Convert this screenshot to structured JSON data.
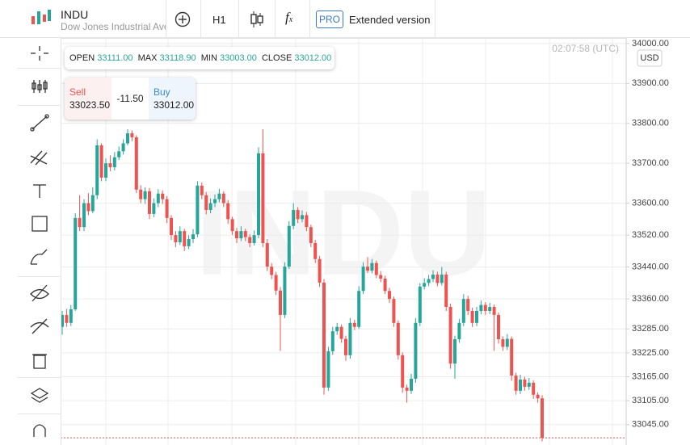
{
  "header": {
    "symbol": "INDU",
    "name": "Dow Jones Industrial Ave",
    "timeframe": "H1",
    "badge": "PRO",
    "extended": "Extended version"
  },
  "ohlc": {
    "open_label": "OPEN",
    "open": "33111.00",
    "max_label": "MAX",
    "max": "33118.90",
    "min_label": "MIN",
    "min": "33003.00",
    "close_label": "CLOSE",
    "close": "33012.00"
  },
  "trade": {
    "sell_label": "Sell",
    "sell": "33023.50",
    "spread": "-11.50",
    "buy_label": "Buy",
    "buy": "33012.00"
  },
  "clock": "02:07:58 (UTC)",
  "currency": "USD",
  "chart": {
    "type": "candlestick",
    "ylim": [
      32994,
      34014
    ],
    "yticks": [
      {
        "value": 34000,
        "label": "34000.00"
      },
      {
        "value": 33900,
        "label": "33900.00"
      },
      {
        "value": 33800,
        "label": "33800.00"
      },
      {
        "value": 33700,
        "label": "33700.00"
      },
      {
        "value": 33600,
        "label": "33600.00"
      },
      {
        "value": 33520,
        "label": "33520.00"
      },
      {
        "value": 33440,
        "label": "33440.00"
      },
      {
        "value": 33360,
        "label": "33360.00"
      },
      {
        "value": 33285,
        "label": "33285.00"
      },
      {
        "value": 33225,
        "label": "33225.00"
      },
      {
        "value": 33165,
        "label": "33165.00"
      },
      {
        "value": 33105,
        "label": "33105.00"
      },
      {
        "value": 33045,
        "label": "33045.00"
      }
    ],
    "grid": true,
    "up_color": "#26a69a",
    "down_color": "#ef5350",
    "candles": [
      [
        33290,
        33330,
        33270,
        33320
      ],
      [
        33320,
        33335,
        33290,
        33300
      ],
      [
        33300,
        33345,
        33292,
        33334
      ],
      [
        33334,
        33575,
        33330,
        33563
      ],
      [
        33563,
        33620,
        33530,
        33540
      ],
      [
        33540,
        33610,
        33530,
        33600
      ],
      [
        33600,
        33625,
        33570,
        33580
      ],
      [
        33580,
        33640,
        33575,
        33620
      ],
      [
        33620,
        33760,
        33610,
        33745
      ],
      [
        33745,
        33750,
        33655,
        33664
      ],
      [
        33664,
        33712,
        33655,
        33700
      ],
      [
        33700,
        33720,
        33680,
        33690
      ],
      [
        33690,
        33728,
        33682,
        33715
      ],
      [
        33715,
        33742,
        33708,
        33730
      ],
      [
        33730,
        33760,
        33722,
        33750
      ],
      [
        33750,
        33785,
        33745,
        33775
      ],
      [
        33775,
        33782,
        33755,
        33765
      ],
      [
        33765,
        33770,
        33625,
        33634
      ],
      [
        33634,
        33645,
        33600,
        33610
      ],
      [
        33610,
        33640,
        33598,
        33630
      ],
      [
        33630,
        33638,
        33560,
        33573
      ],
      [
        33573,
        33612,
        33565,
        33600
      ],
      [
        33600,
        33635,
        33590,
        33624
      ],
      [
        33624,
        33632,
        33598,
        33610
      ],
      [
        33610,
        33618,
        33550,
        33563
      ],
      [
        33563,
        33570,
        33508,
        33520
      ],
      [
        33520,
        33530,
        33490,
        33502
      ],
      [
        33502,
        33542,
        33495,
        33530
      ],
      [
        33530,
        33536,
        33480,
        33492
      ],
      [
        33492,
        33520,
        33485,
        33510
      ],
      [
        33510,
        33535,
        33500,
        33522
      ],
      [
        33522,
        33655,
        33515,
        33644
      ],
      [
        33644,
        33652,
        33610,
        33620
      ],
      [
        33620,
        33628,
        33572,
        33583
      ],
      [
        33583,
        33612,
        33575,
        33600
      ],
      [
        33600,
        33622,
        33590,
        33610
      ],
      [
        33610,
        33636,
        33602,
        33624
      ],
      [
        33624,
        33630,
        33590,
        33600
      ],
      [
        33600,
        33608,
        33548,
        33560
      ],
      [
        33560,
        33566,
        33520,
        33530
      ],
      [
        33530,
        33538,
        33500,
        33512
      ],
      [
        33512,
        33542,
        33505,
        33530
      ],
      [
        33530,
        33536,
        33505,
        33515
      ],
      [
        33515,
        33522,
        33490,
        33500
      ],
      [
        33500,
        33532,
        33494,
        33520
      ],
      [
        33520,
        33740,
        33512,
        33725
      ],
      [
        33725,
        33785,
        33490,
        33500
      ],
      [
        33500,
        33510,
        33430,
        33441
      ],
      [
        33441,
        33450,
        33410,
        33420
      ],
      [
        33420,
        33428,
        33370,
        33381
      ],
      [
        33381,
        33390,
        33230,
        33320
      ],
      [
        33320,
        33452,
        33312,
        33441
      ],
      [
        33441,
        33555,
        33435,
        33543
      ],
      [
        33543,
        33600,
        33535,
        33583
      ],
      [
        33583,
        33590,
        33550,
        33560
      ],
      [
        33560,
        33582,
        33552,
        33570
      ],
      [
        33570,
        33578,
        33530,
        33540
      ],
      [
        33540,
        33546,
        33490,
        33500
      ],
      [
        33500,
        33508,
        33450,
        33460
      ],
      [
        33460,
        33468,
        33390,
        33401
      ],
      [
        33401,
        33410,
        33120,
        33138
      ],
      [
        33138,
        33240,
        33130,
        33229
      ],
      [
        33229,
        33290,
        33220,
        33279
      ],
      [
        33279,
        33300,
        33270,
        33290
      ],
      [
        33290,
        33296,
        33250,
        33260
      ],
      [
        33260,
        33268,
        33205,
        33219
      ],
      [
        33219,
        33312,
        33210,
        33300
      ],
      [
        33300,
        33308,
        33282,
        33290
      ],
      [
        33290,
        33392,
        33285,
        33380
      ],
      [
        33380,
        33452,
        33372,
        33441
      ],
      [
        33441,
        33465,
        33425,
        33431
      ],
      [
        33431,
        33460,
        33424,
        33450
      ],
      [
        33450,
        33456,
        33412,
        33420
      ],
      [
        33420,
        33430,
        33402,
        33411
      ],
      [
        33411,
        33418,
        33372,
        33380
      ],
      [
        33380,
        33388,
        33350,
        33360
      ],
      [
        33360,
        33366,
        33290,
        33300
      ],
      [
        33300,
        33306,
        33208,
        33219
      ],
      [
        33219,
        33226,
        33125,
        33138
      ],
      [
        33138,
        33145,
        33100,
        33130
      ],
      [
        33130,
        33172,
        33122,
        33160
      ],
      [
        33160,
        33312,
        33150,
        33300
      ],
      [
        33300,
        33400,
        33292,
        33391
      ],
      [
        33391,
        33412,
        33384,
        33400
      ],
      [
        33400,
        33420,
        33392,
        33410
      ],
      [
        33410,
        33432,
        33402,
        33421
      ],
      [
        33421,
        33428,
        33392,
        33400
      ],
      [
        33400,
        33440,
        33394,
        33421
      ],
      [
        33421,
        33428,
        33330,
        33340
      ],
      [
        33340,
        33348,
        33185,
        33198
      ],
      [
        33198,
        33268,
        33160,
        33259
      ],
      [
        33259,
        33310,
        33250,
        33300
      ],
      [
        33300,
        33372,
        33292,
        33360
      ],
      [
        33360,
        33368,
        33320,
        33330
      ],
      [
        33330,
        33338,
        33290,
        33300
      ],
      [
        33300,
        33340,
        33292,
        33330
      ],
      [
        33330,
        33356,
        33322,
        33345
      ],
      [
        33345,
        33352,
        33320,
        33330
      ],
      [
        33330,
        33350,
        33322,
        33340
      ],
      [
        33340,
        33346,
        33230,
        33320
      ],
      [
        33320,
        33326,
        33248,
        33259
      ],
      [
        33259,
        33266,
        33230,
        33240
      ],
      [
        33240,
        33272,
        33232,
        33260
      ],
      [
        33260,
        33266,
        33155,
        33168
      ],
      [
        33168,
        33175,
        33120,
        33130
      ],
      [
        33130,
        33170,
        33122,
        33158
      ],
      [
        33158,
        33165,
        33130,
        33140
      ],
      [
        33140,
        33162,
        33132,
        33150
      ],
      [
        33150,
        33156,
        33110,
        33120
      ],
      [
        33120,
        33126,
        33100,
        33111
      ],
      [
        33111,
        33118.9,
        33003,
        33012
      ]
    ]
  }
}
